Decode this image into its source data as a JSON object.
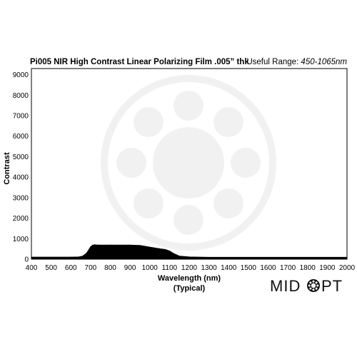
{
  "header": {
    "title": "Pi005 NIR High Contrast Linear Polarizing Film .005” thk",
    "useful_range_label": "Useful Range:",
    "useful_range_value": "450-1065nm"
  },
  "logo": {
    "text_left": "MID",
    "text_right": "PT"
  },
  "chart_data": {
    "type": "area",
    "title": "Pi005 NIR High Contrast Linear Polarizing Film .005” thk",
    "xlabel": "Wavelength (nm)",
    "xlabel_sub": "(Typical)",
    "ylabel": "Contrast",
    "xlim": [
      400,
      2000
    ],
    "ylim": [
      0,
      9300
    ],
    "x_ticks": [
      400,
      500,
      600,
      700,
      800,
      900,
      1000,
      1100,
      1200,
      1300,
      1400,
      1500,
      1600,
      1700,
      1800,
      1900,
      2000
    ],
    "y_ticks": [
      0,
      1000,
      2000,
      3000,
      4000,
      5000,
      6000,
      7000,
      8000,
      9000
    ],
    "grid": false,
    "series": [
      {
        "color": "#000000",
        "x": [
          400,
          600,
          640,
          660,
          680,
          700,
          710,
          720,
          740,
          800,
          900,
          950,
          1000,
          1050,
          1080,
          1100,
          1120,
          1150,
          1200,
          1300,
          1500,
          2000
        ],
        "y": [
          100,
          100,
          110,
          150,
          300,
          600,
          680,
          700,
          690,
          690,
          690,
          670,
          590,
          510,
          470,
          400,
          280,
          150,
          110,
          90,
          90,
          90
        ]
      }
    ]
  }
}
